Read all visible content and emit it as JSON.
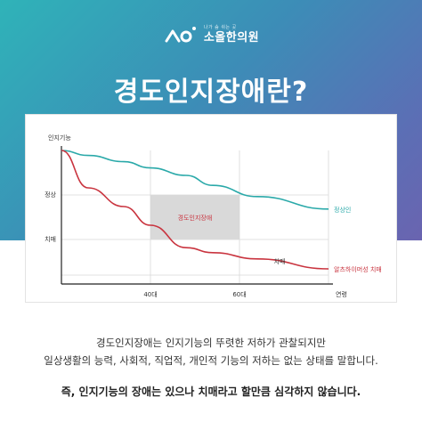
{
  "brand": {
    "tagline": "나가 숨 쉬는 곳",
    "name": "소올한의원",
    "logo_icon": "brand-logo-icon"
  },
  "title": "경도인지장애란?",
  "chart_data": {
    "type": "line",
    "ylabel": "인지기능",
    "xlabel": "연령",
    "x_ticks": [
      "40대",
      "60대"
    ],
    "y_ticks": [
      "정상",
      "치매"
    ],
    "highlight_label": "경도인지장애",
    "series": [
      {
        "name": "정상인",
        "color": "#2aa9a9",
        "values": [
          0,
          4,
          9,
          14,
          20,
          28,
          37,
          47
        ]
      },
      {
        "name": "알츠하이머성 치매",
        "color": "#c9343f",
        "values": [
          0,
          30,
          45,
          60,
          78,
          82,
          87,
          95
        ]
      }
    ],
    "x_positions": [
      0,
      30,
      70,
      100,
      140,
      170,
      220,
      300
    ],
    "annotation": "치매",
    "highlight_color": "#d9d9d9"
  },
  "description": {
    "line1": "경도인지장애는 인지기능의 뚜렷한 저하가 관찰되지만",
    "line2": "일상생활의 능력, 사회적, 직업적, 개인적 기능의 저하는 없는 상태를 말합니다."
  },
  "conclusion": "즉, 인지기능의 장애는 있으나 치매라고 할만큼 심각하지 않습니다."
}
